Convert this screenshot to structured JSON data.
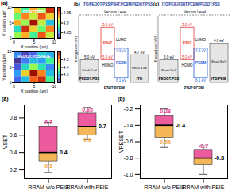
{
  "chart_data": [
    {
      "type": "heatmap",
      "panel": "(a)",
      "title": "PEDOT:PSS",
      "x_label": "X position (μm)",
      "y_label": "Y position (μm)",
      "x": [
        0,
        2,
        4,
        6,
        8
      ],
      "y": [
        0,
        2,
        4,
        6,
        8
      ],
      "xlim": [
        0,
        10
      ],
      "ylim": [
        0,
        10
      ],
      "xticks": [
        0,
        5,
        10
      ],
      "yticks": [
        0,
        5,
        10
      ],
      "cells": [
        [
          4.9,
          4.93,
          4.88,
          4.95,
          4.91
        ],
        [
          4.87,
          4.96,
          4.92,
          4.89,
          4.94
        ],
        [
          4.93,
          4.9,
          4.97,
          4.91,
          4.86
        ],
        [
          4.89,
          4.94,
          4.91,
          4.95,
          4.92
        ],
        [
          4.92,
          4.88,
          4.93,
          4.9,
          4.96
        ]
      ],
      "color": "turbo",
      "colorbar_lim": [
        4.82,
        4.98
      ],
      "colorbar_ticks": [
        4.85,
        4.9,
        4.95
      ]
    },
    {
      "type": "heatmap",
      "title": "PEDOT:PSS/PEIE",
      "x_label": "X position (μm)",
      "y_label": "Y position (μm)",
      "x": [
        0,
        2,
        4,
        6,
        8
      ],
      "y": [
        0,
        2,
        4,
        6,
        8
      ],
      "xlim": [
        0,
        10
      ],
      "ylim": [
        0,
        10
      ],
      "xticks": [
        0,
        5,
        10
      ],
      "yticks": [
        0,
        5,
        10
      ],
      "cells": [
        [
          4.25,
          4.3,
          4.52,
          4.55,
          4.35
        ],
        [
          4.28,
          4.45,
          4.58,
          4.5,
          4.3
        ],
        [
          4.24,
          4.32,
          4.4,
          4.33,
          4.27
        ],
        [
          4.22,
          4.26,
          4.3,
          4.28,
          4.35
        ],
        [
          4.27,
          4.23,
          4.25,
          4.31,
          4.29
        ]
      ],
      "color": "turbo",
      "colorbar_lim": [
        4.2,
        4.6
      ],
      "colorbar_ticks": [
        4.3,
        4.4,
        4.5
      ]
    },
    {
      "type": "box",
      "panel": "(a)",
      "y_label": "VSET",
      "categories": [
        "RRAM w/o PEIE",
        "RRAM with PEIE"
      ],
      "ylim": [
        0.1,
        0.95
      ],
      "yticks": [
        0.2,
        0.4,
        0.6,
        0.8
      ],
      "colors": [
        "#e83e8c",
        "#f2a93b"
      ],
      "boxes": [
        {
          "min": 0.17,
          "q1": 0.3,
          "median": 0.4,
          "q3": 0.7,
          "max": 0.75,
          "value_labels": {
            "q3": "0.7",
            "q1": "0.3",
            "median": "0.4"
          }
        },
        {
          "min": 0.55,
          "q1": 0.6,
          "median": 0.7,
          "q3": 0.85,
          "max": 0.92,
          "value_labels": {
            "q3": "0.85",
            "q1": "0.6",
            "median": "0.7"
          }
        }
      ]
    },
    {
      "type": "box",
      "panel": "(b)",
      "y_label": "VRESET",
      "categories": [
        "RRAM w/o PEIE",
        "RRAM with PEIE"
      ],
      "ylim": [
        -1.05,
        -0.15
      ],
      "yticks": [
        -0.2,
        -0.4,
        -0.6,
        -0.8,
        {
          "value": -1,
          "label": "-1.0"
        }
      ],
      "colors": [
        "#e83e8c",
        "#f2a93b"
      ],
      "boxes": [
        {
          "min": -0.67,
          "q1": -0.55,
          "median": -0.4,
          "q3": -0.28,
          "max": -0.2,
          "value_labels": {
            "q3": "-0.28",
            "q1": "-0.55",
            "median": "-0.4"
          }
        },
        {
          "min": -1.0,
          "q1": -0.88,
          "median": -0.8,
          "q3": -0.7,
          "max": -0.65,
          "value_labels": {
            "q3": "-0.7",
            "median": "-0.8"
          }
        }
      ]
    }
  ],
  "diagrams": [
    {
      "panel": "(b)",
      "title": "ITO/PEDOT:PSS/P3HT:PCBM/PEDOT:PSS",
      "vacuum_label": "Vacuum Level",
      "y_label": "Energy Level (eV)",
      "left": {
        "name": "PEDOT:PSS",
        "level": 5.0,
        "label": "5.0 eV",
        "barrier": "Φh=0.7 eV"
      },
      "right": {
        "name": "ITO",
        "level": 4.7,
        "label": "4.7 eV",
        "barrier": "Φe=0.3 eV"
      },
      "active_layer": "P3HT:PCBM",
      "lumo_label": "LUMO",
      "homo_label": "HOMO",
      "materials": [
        {
          "name": "P3HT",
          "color": "#e53935",
          "lumo": 3.0,
          "homo": 5.0,
          "lumo_label": "3.0 eV",
          "homo_label": "5.0 eV"
        },
        {
          "name": "PCBM",
          "color": "#1e5bd6",
          "lumo": 4.3,
          "homo": 6.1,
          "lumo_label": "4.3 eV",
          "homo_label": "6.1 eV"
        }
      ]
    },
    {
      "panel": "(c)",
      "title": "ITO/PEIE/P3HT:PCBM/PEDOT:PSS",
      "vacuum_label": "Vacuum Level",
      "y_label": "Energy Level (eV)",
      "left": {
        "name": "PEDOT:PSS",
        "level": 5.0,
        "label": "5.0 eV",
        "barrier": "Φh=0.7 eV"
      },
      "right": {
        "name": "ITO/PEIE",
        "level": 4.0,
        "label": "4.0 eV",
        "barrier": "Φe=0.8 eV"
      },
      "active_layer": "P3HT:PCBM",
      "lumo_label": "LUMO",
      "homo_label": "HOMO",
      "materials": [
        {
          "name": "P3HT",
          "color": "#e53935",
          "lumo": 3.0,
          "homo": 5.0,
          "lumo_label": "3.0 eV",
          "homo_label": "5.0 eV"
        },
        {
          "name": "PCBM",
          "color": "#1e5bd6",
          "lumo": 4.3,
          "homo": 6.1,
          "lumo_label": "4.3 eV",
          "homo_label": "6.1 eV"
        }
      ]
    }
  ]
}
